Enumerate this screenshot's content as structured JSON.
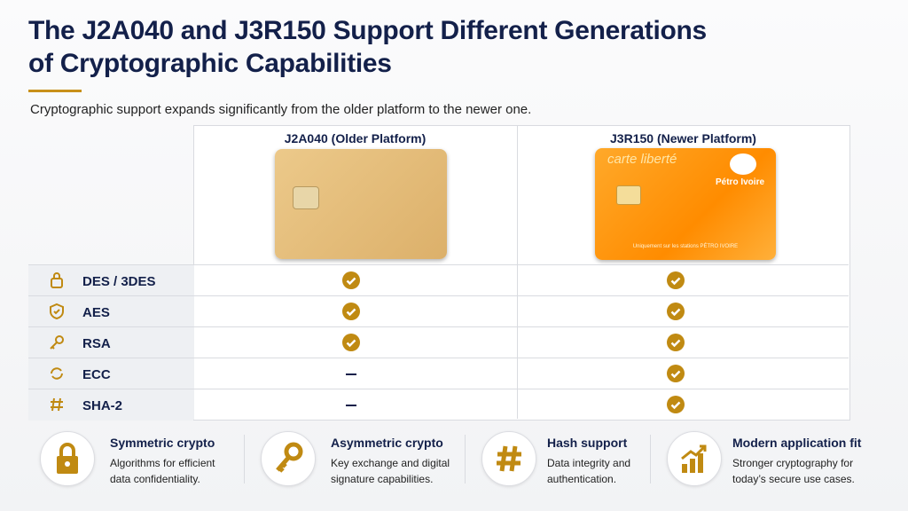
{
  "header": {
    "title_lines": [
      "The J2A040 and J3R150 Support Different Generations",
      "of Cryptographic Capabilities"
    ],
    "subtitle": "Cryptographic support expands significantly from the older platform to the newer one."
  },
  "table": {
    "columns": [
      {
        "title": "J2A040 (Older Platform)"
      },
      {
        "title": "J3R150 (Newer Platform)",
        "card": {
          "brand": "carte liberté",
          "logo": "Pétro Ivoire",
          "footer": "Uniquement sur les stations PÉTRO IVOIRE"
        }
      }
    ],
    "rows": [
      {
        "label": "DES / 3DES",
        "supported": [
          true,
          true
        ]
      },
      {
        "label": "AES",
        "supported": [
          true,
          true
        ]
      },
      {
        "label": "RSA",
        "supported": [
          true,
          true
        ]
      },
      {
        "label": "ECC",
        "supported": [
          false,
          true
        ]
      },
      {
        "label": "SHA-2",
        "supported": [
          false,
          true
        ]
      }
    ]
  },
  "features": [
    {
      "title": "Symmetric crypto",
      "text": "Algorithms for efficient data confidentiality."
    },
    {
      "title": "Asymmetric crypto",
      "text": "Key exchange and digital signature capabilities."
    },
    {
      "title": "Hash support",
      "text": "Data integrity and authentication."
    },
    {
      "title": "Modern application fit",
      "text": "Stronger cryptography for today’s secure use cases."
    }
  ]
}
